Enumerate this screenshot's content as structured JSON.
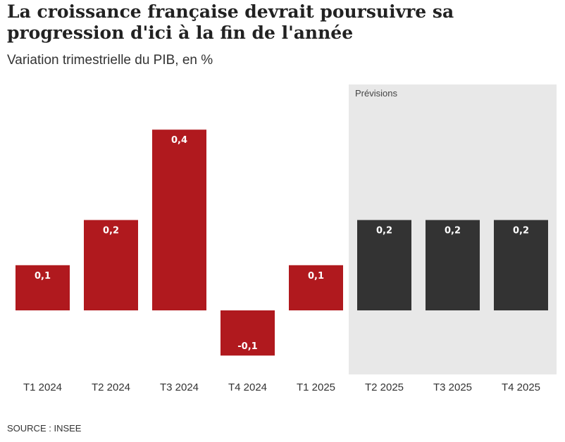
{
  "title": "La croissance française devrait poursuivre sa progression d'ici à la fin de l'année",
  "subtitle": "Variation trimestrielle du PIB, en %",
  "source": "SOURCE : INSEE",
  "forecast_label": "Prévisions",
  "colors": {
    "actual": "#b0191e",
    "forecast": "#333333",
    "forecast_band": "#e8e8e8",
    "value_label": "#ffffff"
  },
  "chart_data": {
    "type": "bar",
    "title": "La croissance française devrait poursuivre sa progression d'ici à la fin de l'année",
    "subtitle": "Variation trimestrielle du PIB, en %",
    "categories": [
      "T1 2024",
      "T2 2024",
      "T3 2024",
      "T4 2024",
      "T1 2025",
      "T2 2025",
      "T3 2025",
      "T4 2025"
    ],
    "values": [
      0.1,
      0.2,
      0.4,
      -0.1,
      0.1,
      0.2,
      0.2,
      0.2
    ],
    "value_labels": [
      "0,1",
      "0,2",
      "0,4",
      "-0,1",
      "0,1",
      "0,2",
      "0,2",
      "0,2"
    ],
    "forecast": [
      false,
      false,
      false,
      false,
      false,
      true,
      true,
      true
    ],
    "forecast_band_label": "Prévisions",
    "xlabel": "",
    "ylabel": "",
    "ylim": [
      -0.15,
      0.5
    ],
    "grid": false,
    "source": "SOURCE : INSEE"
  }
}
